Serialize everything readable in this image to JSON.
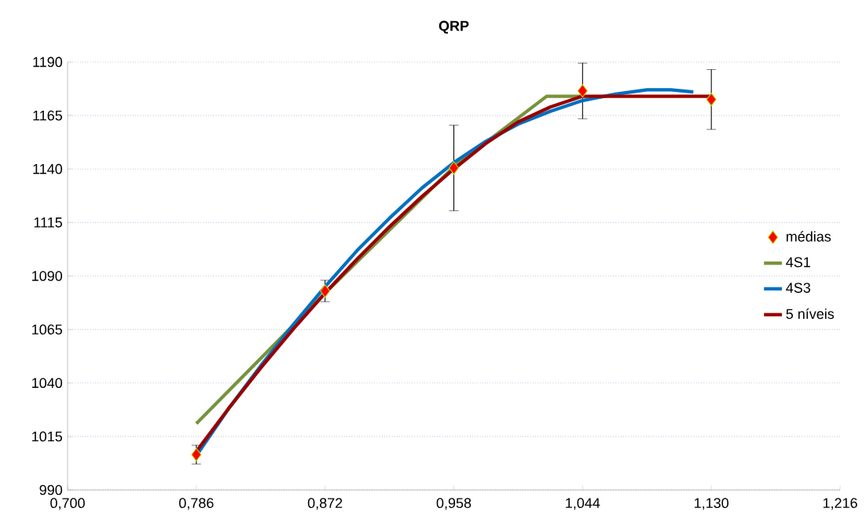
{
  "chart_data": {
    "type": "line",
    "title": "QRP",
    "xlim": [
      0.7,
      1.216
    ],
    "ylim": [
      990,
      1190
    ],
    "xticks": [
      {
        "value": 0.7,
        "label": "0,700"
      },
      {
        "value": 0.786,
        "label": "0,786"
      },
      {
        "value": 0.872,
        "label": "0,872"
      },
      {
        "value": 0.958,
        "label": "0,958"
      },
      {
        "value": 1.044,
        "label": "1,044"
      },
      {
        "value": 1.13,
        "label": "1,130"
      },
      {
        "value": 1.216,
        "label": "1,216"
      }
    ],
    "yticks": [
      990,
      1015,
      1040,
      1065,
      1090,
      1115,
      1140,
      1165,
      1190
    ],
    "grid": "y",
    "legend": "right",
    "series": [
      {
        "name": "médias",
        "type": "scatter",
        "marker": "diamond",
        "color": "#ff0000",
        "x": [
          0.786,
          0.872,
          0.958,
          1.044,
          1.13
        ],
        "values": [
          1006.5,
          1083,
          1140.5,
          1176.5,
          1172.5
        ],
        "errors": [
          4.4,
          5,
          20,
          13,
          14
        ]
      },
      {
        "name": "4S1",
        "marker": "none",
        "color": "#77933c",
        "x": [
          0.786,
          0.872,
          0.958,
          1.02,
          1.044
        ],
        "values": [
          1021,
          1082,
          1141,
          1174,
          1174
        ]
      },
      {
        "name": "4S3",
        "marker": "none",
        "color": "#0070c0",
        "x": [
          0.786,
          0.8075,
          0.829,
          0.8505,
          0.872,
          0.8935,
          0.915,
          0.9365,
          0.958,
          0.9795,
          1.001,
          1.0225,
          1.044,
          1.066,
          1.087,
          1.103,
          1.118
        ],
        "values": [
          1006,
          1028,
          1048,
          1067,
          1085,
          1102,
          1117,
          1131,
          1143,
          1153,
          1161,
          1167,
          1172,
          1175,
          1177,
          1177,
          1176
        ]
      },
      {
        "name": "5 níveis",
        "marker": "none",
        "color": "#990000",
        "x": [
          0.786,
          0.8075,
          0.829,
          0.8505,
          0.872,
          0.8935,
          0.915,
          0.9365,
          0.958,
          0.9795,
          1.001,
          1.0225,
          1.044,
          1.13
        ],
        "values": [
          1008,
          1028,
          1047,
          1065,
          1082,
          1098,
          1113,
          1127,
          1140,
          1152,
          1162,
          1169,
          1174,
          1174
        ]
      }
    ]
  }
}
